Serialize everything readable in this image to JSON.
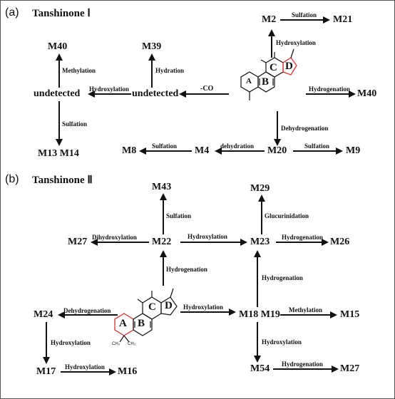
{
  "panel_a": {
    "label": "(a)",
    "title": "Tanshinone Ⅰ",
    "nodes": {
      "m2": "M2",
      "m21": "M21",
      "m40_top": "M40",
      "m39": "M39",
      "undetected_left": "undetected",
      "undetected_mid": "undetected",
      "m40_right": "M40",
      "m13_m14": "M13 M14",
      "m8": "M8",
      "m4": "M4",
      "m20": "M20",
      "m9": "M9"
    },
    "reactions": {
      "m2_to_m21": "Sulfation",
      "mol_to_m2": "Hydroxylation",
      "und_to_m40": "Methylation",
      "und_to_m39": "Hydration",
      "und_to_und": "Hydroxylation",
      "mol_to_und": "-CO",
      "mol_to_m40": "Hydrogenation",
      "und_to_m13": "Sulfation",
      "mol_to_m20": "Dehydrogenation",
      "m4_to_m8": "Sulfation",
      "m20_to_m4": "dehydration",
      "m20_to_m9": "Sulfation"
    },
    "rings": {
      "a": "A",
      "b": "B",
      "c": "C",
      "d": "D"
    }
  },
  "panel_b": {
    "label": "(b)",
    "title": "Tanshinone Ⅱ",
    "nodes": {
      "m43": "M43",
      "m29": "M29",
      "m27_top": "M27",
      "m22": "M22",
      "m23": "M23",
      "m26": "M26",
      "m24": "M24",
      "m18_m19": "M18 M19",
      "m15": "M15",
      "m17": "M17",
      "m16": "M16",
      "m54": "M54",
      "m27_bottom": "M27"
    },
    "reactions": {
      "m22_to_m43": "Sulfation",
      "m23_to_m29": "Glucurinidation",
      "m22_to_m27": "Dihydroxylation",
      "m22_to_m23": "Hydroxylation",
      "m23_to_m26": "Hydrogenation",
      "mol_to_m22": "Hydrogenation",
      "m19_to_m23": "Hydrogenation",
      "mol_to_m24": "Dehydrogenation",
      "mol_to_m18": "Hydroxylation",
      "m19_to_m15": "Methylation",
      "m24_to_m17": "Hydroxylation",
      "m19_to_m54": "Hydroxylation",
      "m17_to_m16": "Hydroxylation",
      "m54_to_m27": "Hydrogenation"
    },
    "rings": {
      "a": "A",
      "b": "B",
      "c": "C",
      "d": "D"
    },
    "methyl_label": "CH₃"
  }
}
